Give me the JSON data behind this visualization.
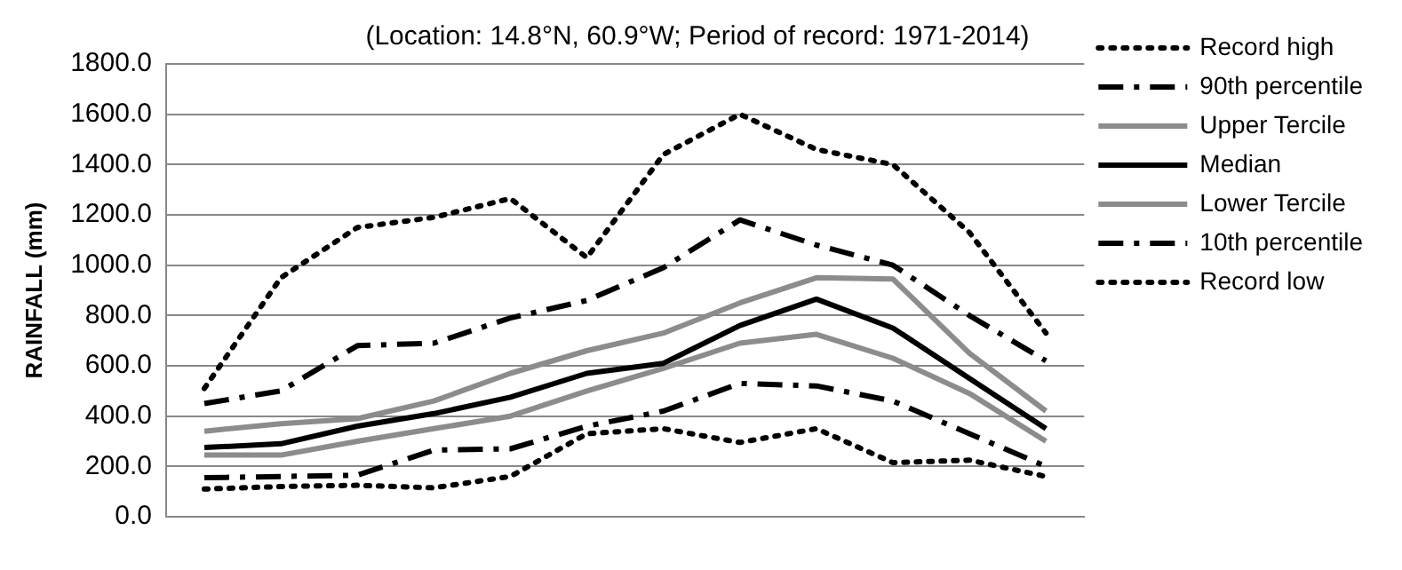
{
  "chart_data": {
    "type": "line",
    "title": "(Location: 14.8°N, 60.9°W; Period of record: 1971-2014)",
    "ylabel": "RAINFALL (mm)",
    "categories": [
      null,
      null,
      null,
      null,
      null,
      null,
      null,
      null,
      null,
      null,
      null,
      null
    ],
    "series": [
      {
        "name": "Record high",
        "color": "#000000",
        "line_style": "dotted",
        "values": [
          510,
          950,
          1150,
          1190,
          1265,
          1030,
          1440,
          1600,
          1460,
          1400,
          1130,
          730
        ]
      },
      {
        "name": "90th percentile",
        "color": "#000000",
        "line_style": "dashed",
        "values": [
          450,
          500,
          680,
          690,
          790,
          860,
          990,
          1180,
          1080,
          1000,
          800,
          620
        ]
      },
      {
        "name": "Upper Tercile",
        "color": "#8c8c8c",
        "line_style": "solid",
        "values": [
          340,
          370,
          390,
          460,
          570,
          660,
          730,
          850,
          950,
          945,
          650,
          420
        ]
      },
      {
        "name": "Median",
        "color": "#000000",
        "line_style": "solid",
        "values": [
          275,
          290,
          360,
          410,
          475,
          570,
          610,
          760,
          865,
          750,
          550,
          350
        ]
      },
      {
        "name": "Lower Tercile",
        "color": "#8c8c8c",
        "line_style": "solid",
        "values": [
          245,
          245,
          300,
          350,
          400,
          500,
          590,
          690,
          725,
          630,
          490,
          300
        ]
      },
      {
        "name": "10th percentile",
        "color": "#000000",
        "line_style": "dashed",
        "values": [
          155,
          160,
          165,
          265,
          270,
          360,
          420,
          530,
          520,
          460,
          330,
          200
        ]
      },
      {
        "name": "Record low",
        "color": "#000000",
        "line_style": "dotted",
        "values": [
          110,
          120,
          125,
          115,
          160,
          330,
          350,
          295,
          350,
          215,
          225,
          160
        ]
      }
    ],
    "ylim": [
      0,
      1800
    ],
    "yticks": [
      {
        "value": 0,
        "label": "0.0"
      },
      {
        "value": 200,
        "label": "200.0"
      },
      {
        "value": 400,
        "label": "400.0"
      },
      {
        "value": 600,
        "label": "600.0"
      },
      {
        "value": 800,
        "label": "800.0"
      },
      {
        "value": 1000,
        "label": "1000.0"
      },
      {
        "value": 1200,
        "label": "1200.0"
      },
      {
        "value": 1400,
        "label": "1400.0"
      },
      {
        "value": 1600,
        "label": "1600.0"
      },
      {
        "value": 1800,
        "label": "1800.0"
      }
    ],
    "grid": "y",
    "legend": "right",
    "marker": "none",
    "tick_labels": "y"
  }
}
